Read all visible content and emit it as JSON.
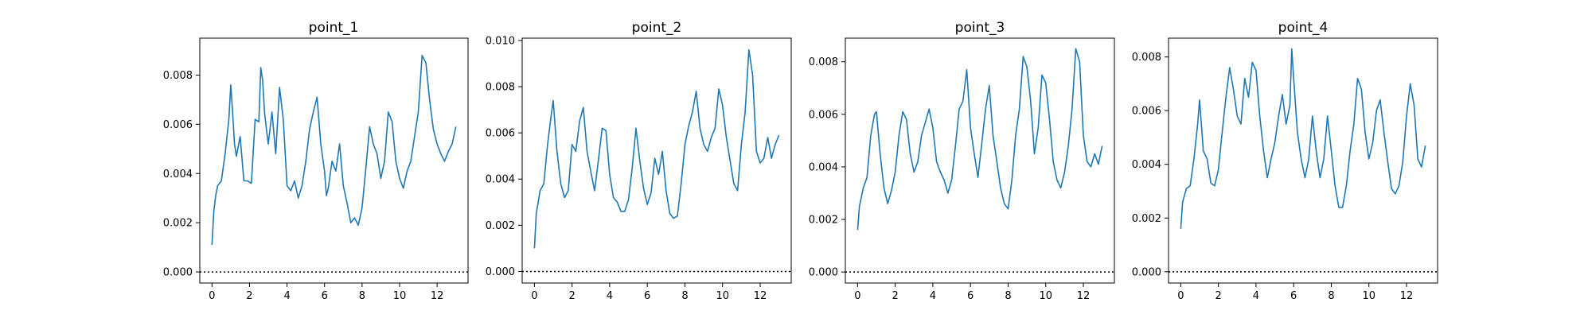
{
  "figure": {
    "series_color": "#1f77b4"
  },
  "chart_data": [
    {
      "type": "line",
      "title": "point_1",
      "xlim": [
        -0.65,
        13.65
      ],
      "ylim": [
        -0.00045,
        0.0095
      ],
      "xticks": [
        0,
        2,
        4,
        6,
        8,
        10,
        12
      ],
      "yticks": [
        "0.000",
        "0.002",
        "0.004",
        "0.006",
        "0.008"
      ],
      "reference_line": {
        "y": 0,
        "style": "dotted"
      },
      "series": [
        {
          "x": [
            0,
            0.1,
            0.2,
            0.3,
            0.5,
            0.7,
            0.9,
            1.0,
            1.1,
            1.2,
            1.3,
            1.5,
            1.7,
            1.9,
            2.1,
            2.3,
            2.5,
            2.6,
            2.7,
            2.8,
            2.9,
            3.0,
            3.2,
            3.4,
            3.6,
            3.8,
            4.0,
            4.2,
            4.4,
            4.6,
            4.8,
            5.0,
            5.2,
            5.4,
            5.6,
            5.8,
            6.0,
            6.1,
            6.2,
            6.4,
            6.6,
            6.8,
            7.0,
            7.2,
            7.4,
            7.6,
            7.8,
            8.0,
            8.2,
            8.4,
            8.6,
            8.8,
            9.0,
            9.2,
            9.4,
            9.6,
            9.8,
            10.0,
            10.2,
            10.4,
            10.6,
            10.8,
            11.0,
            11.2,
            11.4,
            11.6,
            11.8,
            12.0,
            12.2,
            12.4,
            12.6,
            12.8,
            13.0
          ],
          "y": [
            0.0011,
            0.0025,
            0.0031,
            0.0035,
            0.0037,
            0.0048,
            0.0062,
            0.0076,
            0.0065,
            0.0052,
            0.0047,
            0.0055,
            0.0037,
            0.0037,
            0.0036,
            0.0062,
            0.0061,
            0.0083,
            0.0078,
            0.0065,
            0.0058,
            0.0052,
            0.0065,
            0.0048,
            0.0075,
            0.0062,
            0.0035,
            0.0033,
            0.0037,
            0.003,
            0.0035,
            0.0045,
            0.0058,
            0.0065,
            0.0071,
            0.0052,
            0.0041,
            0.0031,
            0.0034,
            0.0045,
            0.0041,
            0.0052,
            0.0035,
            0.0028,
            0.002,
            0.0022,
            0.0019,
            0.0026,
            0.0042,
            0.0059,
            0.0052,
            0.0048,
            0.0038,
            0.0045,
            0.0065,
            0.0061,
            0.0045,
            0.0038,
            0.0034,
            0.0041,
            0.0045,
            0.0055,
            0.0065,
            0.0088,
            0.0085,
            0.007,
            0.0058,
            0.0052,
            0.0048,
            0.0045,
            0.0049,
            0.0052,
            0.0059
          ]
        }
      ]
    },
    {
      "type": "line",
      "title": "point_2",
      "xlim": [
        -0.65,
        13.65
      ],
      "ylim": [
        -0.0005,
        0.0101
      ],
      "xticks": [
        0,
        2,
        4,
        6,
        8,
        10,
        12
      ],
      "yticks": [
        "0.000",
        "0.002",
        "0.004",
        "0.006",
        "0.008",
        "0.010"
      ],
      "reference_line": {
        "y": 0,
        "style": "dotted"
      },
      "series": [
        {
          "x": [
            0,
            0.1,
            0.3,
            0.5,
            0.7,
            0.9,
            1.0,
            1.2,
            1.4,
            1.6,
            1.8,
            2.0,
            2.2,
            2.4,
            2.6,
            2.8,
            3.0,
            3.2,
            3.4,
            3.6,
            3.8,
            4.0,
            4.2,
            4.4,
            4.6,
            4.8,
            5.0,
            5.2,
            5.4,
            5.6,
            5.8,
            6.0,
            6.2,
            6.4,
            6.6,
            6.8,
            7.0,
            7.2,
            7.4,
            7.6,
            7.8,
            8.0,
            8.2,
            8.4,
            8.6,
            8.8,
            9.0,
            9.2,
            9.4,
            9.6,
            9.8,
            10.0,
            10.2,
            10.4,
            10.6,
            10.8,
            11.0,
            11.2,
            11.4,
            11.6,
            11.8,
            12.0,
            12.2,
            12.4,
            12.6,
            12.8,
            13.0
          ],
          "y": [
            0.001,
            0.0025,
            0.0035,
            0.0038,
            0.0055,
            0.0068,
            0.0074,
            0.0052,
            0.0038,
            0.0032,
            0.0035,
            0.0055,
            0.0052,
            0.0065,
            0.0071,
            0.0052,
            0.0043,
            0.0035,
            0.0048,
            0.0062,
            0.0061,
            0.0042,
            0.0032,
            0.003,
            0.0026,
            0.0026,
            0.0031,
            0.0045,
            0.0062,
            0.0048,
            0.0036,
            0.0029,
            0.0034,
            0.0049,
            0.0042,
            0.0052,
            0.0035,
            0.0025,
            0.0023,
            0.0024,
            0.0038,
            0.0055,
            0.0063,
            0.0069,
            0.0078,
            0.0062,
            0.0055,
            0.0052,
            0.0058,
            0.0062,
            0.0079,
            0.0072,
            0.0058,
            0.0048,
            0.0038,
            0.0035,
            0.0055,
            0.0069,
            0.0096,
            0.0085,
            0.0052,
            0.0047,
            0.0049,
            0.0058,
            0.0049,
            0.0055,
            0.0059
          ]
        }
      ]
    },
    {
      "type": "line",
      "title": "point_3",
      "xlim": [
        -0.65,
        13.65
      ],
      "ylim": [
        -0.00042,
        0.0089
      ],
      "xticks": [
        0,
        2,
        4,
        6,
        8,
        10,
        12
      ],
      "yticks": [
        "0.000",
        "0.002",
        "0.004",
        "0.006",
        "0.008"
      ],
      "reference_line": {
        "y": 0,
        "style": "dotted"
      },
      "series": [
        {
          "x": [
            0,
            0.1,
            0.3,
            0.5,
            0.7,
            0.9,
            1.0,
            1.2,
            1.4,
            1.6,
            1.8,
            2.0,
            2.2,
            2.4,
            2.6,
            2.8,
            3.0,
            3.2,
            3.4,
            3.6,
            3.8,
            4.0,
            4.2,
            4.4,
            4.6,
            4.8,
            5.0,
            5.2,
            5.4,
            5.6,
            5.8,
            6.0,
            6.2,
            6.4,
            6.6,
            6.8,
            7.0,
            7.2,
            7.4,
            7.6,
            7.8,
            8.0,
            8.2,
            8.4,
            8.6,
            8.8,
            9.0,
            9.2,
            9.4,
            9.6,
            9.8,
            10.0,
            10.2,
            10.4,
            10.6,
            10.8,
            11.0,
            11.2,
            11.4,
            11.6,
            11.8,
            12.0,
            12.2,
            12.4,
            12.6,
            12.8,
            13.0
          ],
          "y": [
            0.0016,
            0.0025,
            0.0032,
            0.0036,
            0.0052,
            0.006,
            0.0061,
            0.0045,
            0.0032,
            0.0026,
            0.0031,
            0.0038,
            0.0052,
            0.0061,
            0.0058,
            0.0045,
            0.0038,
            0.0042,
            0.0052,
            0.0057,
            0.0062,
            0.0055,
            0.0042,
            0.0038,
            0.0035,
            0.003,
            0.0035,
            0.0048,
            0.0062,
            0.0065,
            0.0077,
            0.0055,
            0.0045,
            0.0036,
            0.0049,
            0.0062,
            0.0071,
            0.0052,
            0.0042,
            0.0032,
            0.0026,
            0.0024,
            0.0035,
            0.0052,
            0.0062,
            0.0082,
            0.0078,
            0.0065,
            0.0045,
            0.0055,
            0.0075,
            0.0072,
            0.0058,
            0.0042,
            0.0035,
            0.0032,
            0.0038,
            0.0048,
            0.0062,
            0.0085,
            0.008,
            0.0052,
            0.0042,
            0.004,
            0.0045,
            0.0041,
            0.0048
          ]
        }
      ]
    },
    {
      "type": "line",
      "title": "point_4",
      "xlim": [
        -0.65,
        13.65
      ],
      "ylim": [
        -0.00042,
        0.0087
      ],
      "xticks": [
        0,
        2,
        4,
        6,
        8,
        10,
        12
      ],
      "yticks": [
        "0.000",
        "0.002",
        "0.004",
        "0.006",
        "0.008"
      ],
      "reference_line": {
        "y": 0,
        "style": "dotted"
      },
      "series": [
        {
          "x": [
            0,
            0.1,
            0.3,
            0.5,
            0.7,
            0.9,
            1.0,
            1.2,
            1.4,
            1.6,
            1.8,
            2.0,
            2.2,
            2.4,
            2.6,
            2.8,
            3.0,
            3.2,
            3.4,
            3.6,
            3.8,
            4.0,
            4.2,
            4.4,
            4.6,
            4.8,
            5.0,
            5.2,
            5.4,
            5.6,
            5.8,
            5.9,
            6.0,
            6.2,
            6.4,
            6.6,
            6.8,
            7.0,
            7.2,
            7.4,
            7.6,
            7.8,
            8.0,
            8.2,
            8.4,
            8.6,
            8.8,
            9.0,
            9.2,
            9.4,
            9.6,
            9.8,
            10.0,
            10.2,
            10.4,
            10.6,
            10.8,
            11.0,
            11.2,
            11.4,
            11.6,
            11.8,
            12.0,
            12.2,
            12.4,
            12.6,
            12.8,
            13.0
          ],
          "y": [
            0.0016,
            0.0026,
            0.0031,
            0.0032,
            0.0042,
            0.0055,
            0.0064,
            0.0045,
            0.0042,
            0.0033,
            0.0032,
            0.0038,
            0.0052,
            0.0065,
            0.0076,
            0.0068,
            0.0058,
            0.0055,
            0.0072,
            0.0065,
            0.0078,
            0.0075,
            0.0058,
            0.0045,
            0.0035,
            0.0042,
            0.0048,
            0.0058,
            0.0066,
            0.0055,
            0.0062,
            0.0083,
            0.0072,
            0.0052,
            0.0042,
            0.0035,
            0.0042,
            0.0058,
            0.0045,
            0.0035,
            0.0042,
            0.0058,
            0.0045,
            0.0032,
            0.0024,
            0.0024,
            0.0032,
            0.0045,
            0.0055,
            0.0072,
            0.0068,
            0.0052,
            0.0042,
            0.0048,
            0.006,
            0.0064,
            0.0052,
            0.0041,
            0.0031,
            0.0029,
            0.0032,
            0.0041,
            0.0058,
            0.007,
            0.0062,
            0.0042,
            0.0039,
            0.0047
          ]
        }
      ]
    }
  ]
}
